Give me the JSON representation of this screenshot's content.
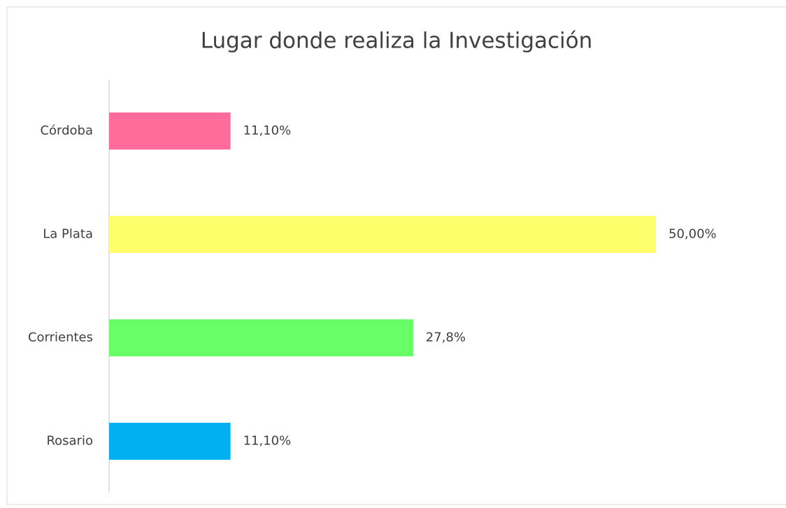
{
  "chart_data": {
    "type": "bar",
    "orientation": "horizontal",
    "title": "Lugar donde realiza la Investigación",
    "categories": [
      "Córdoba",
      "La Plata",
      "Corrientes",
      "Rosario"
    ],
    "values": [
      11.1,
      50,
      27.8,
      11.1
    ],
    "value_labels": [
      "11,10%",
      "50,00%",
      "27,8%",
      "11,10%"
    ],
    "colors": [
      "#ff6b9a",
      "#ffff6b",
      "#66ff66",
      "#00b0f0"
    ]
  }
}
